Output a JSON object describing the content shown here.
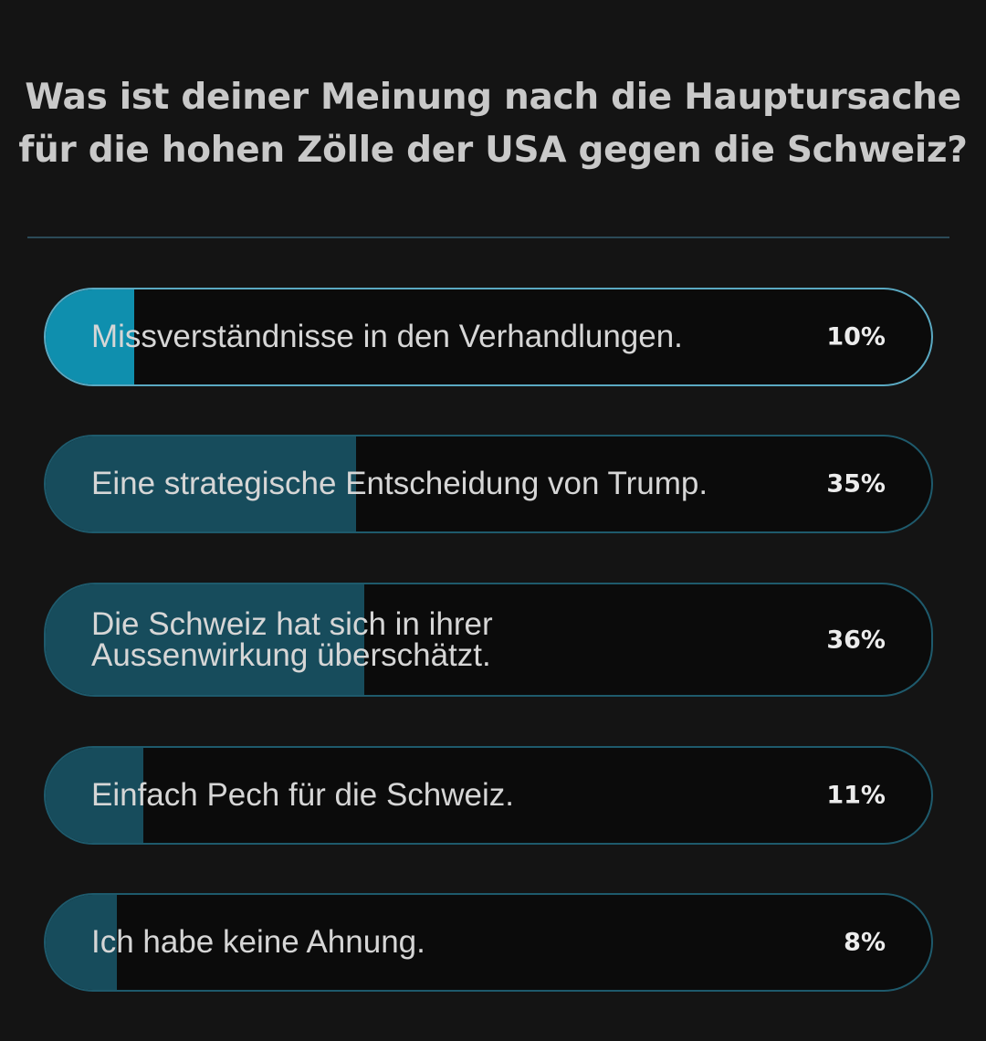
{
  "poll": {
    "question": "Was ist deiner Meinung nach die Hauptursache\nfür die hohen Zölle der USA gegen die Schweiz?",
    "colors": {
      "background": "#141414",
      "selected_fill": "#0f8fae",
      "fill": "#174c5c",
      "border": "#1e5a6c",
      "selected_border": "#5aa9c2"
    },
    "options": [
      {
        "label": "Missverständnisse in den Verhandlungen.",
        "percent_label": "10%",
        "percent": 10,
        "selected": true
      },
      {
        "label": "Eine strategische Entscheidung von Trump.",
        "percent_label": "35%",
        "percent": 35,
        "selected": false
      },
      {
        "label": "Die Schweiz hat sich in ihrer\nAussenwirkung überschätzt.",
        "percent_label": "36%",
        "percent": 36,
        "selected": false
      },
      {
        "label": "Einfach Pech für die Schweiz.",
        "percent_label": "11%",
        "percent": 11,
        "selected": false
      },
      {
        "label": "Ich habe keine Ahnung.",
        "percent_label": "8%",
        "percent": 8,
        "selected": false
      }
    ]
  }
}
